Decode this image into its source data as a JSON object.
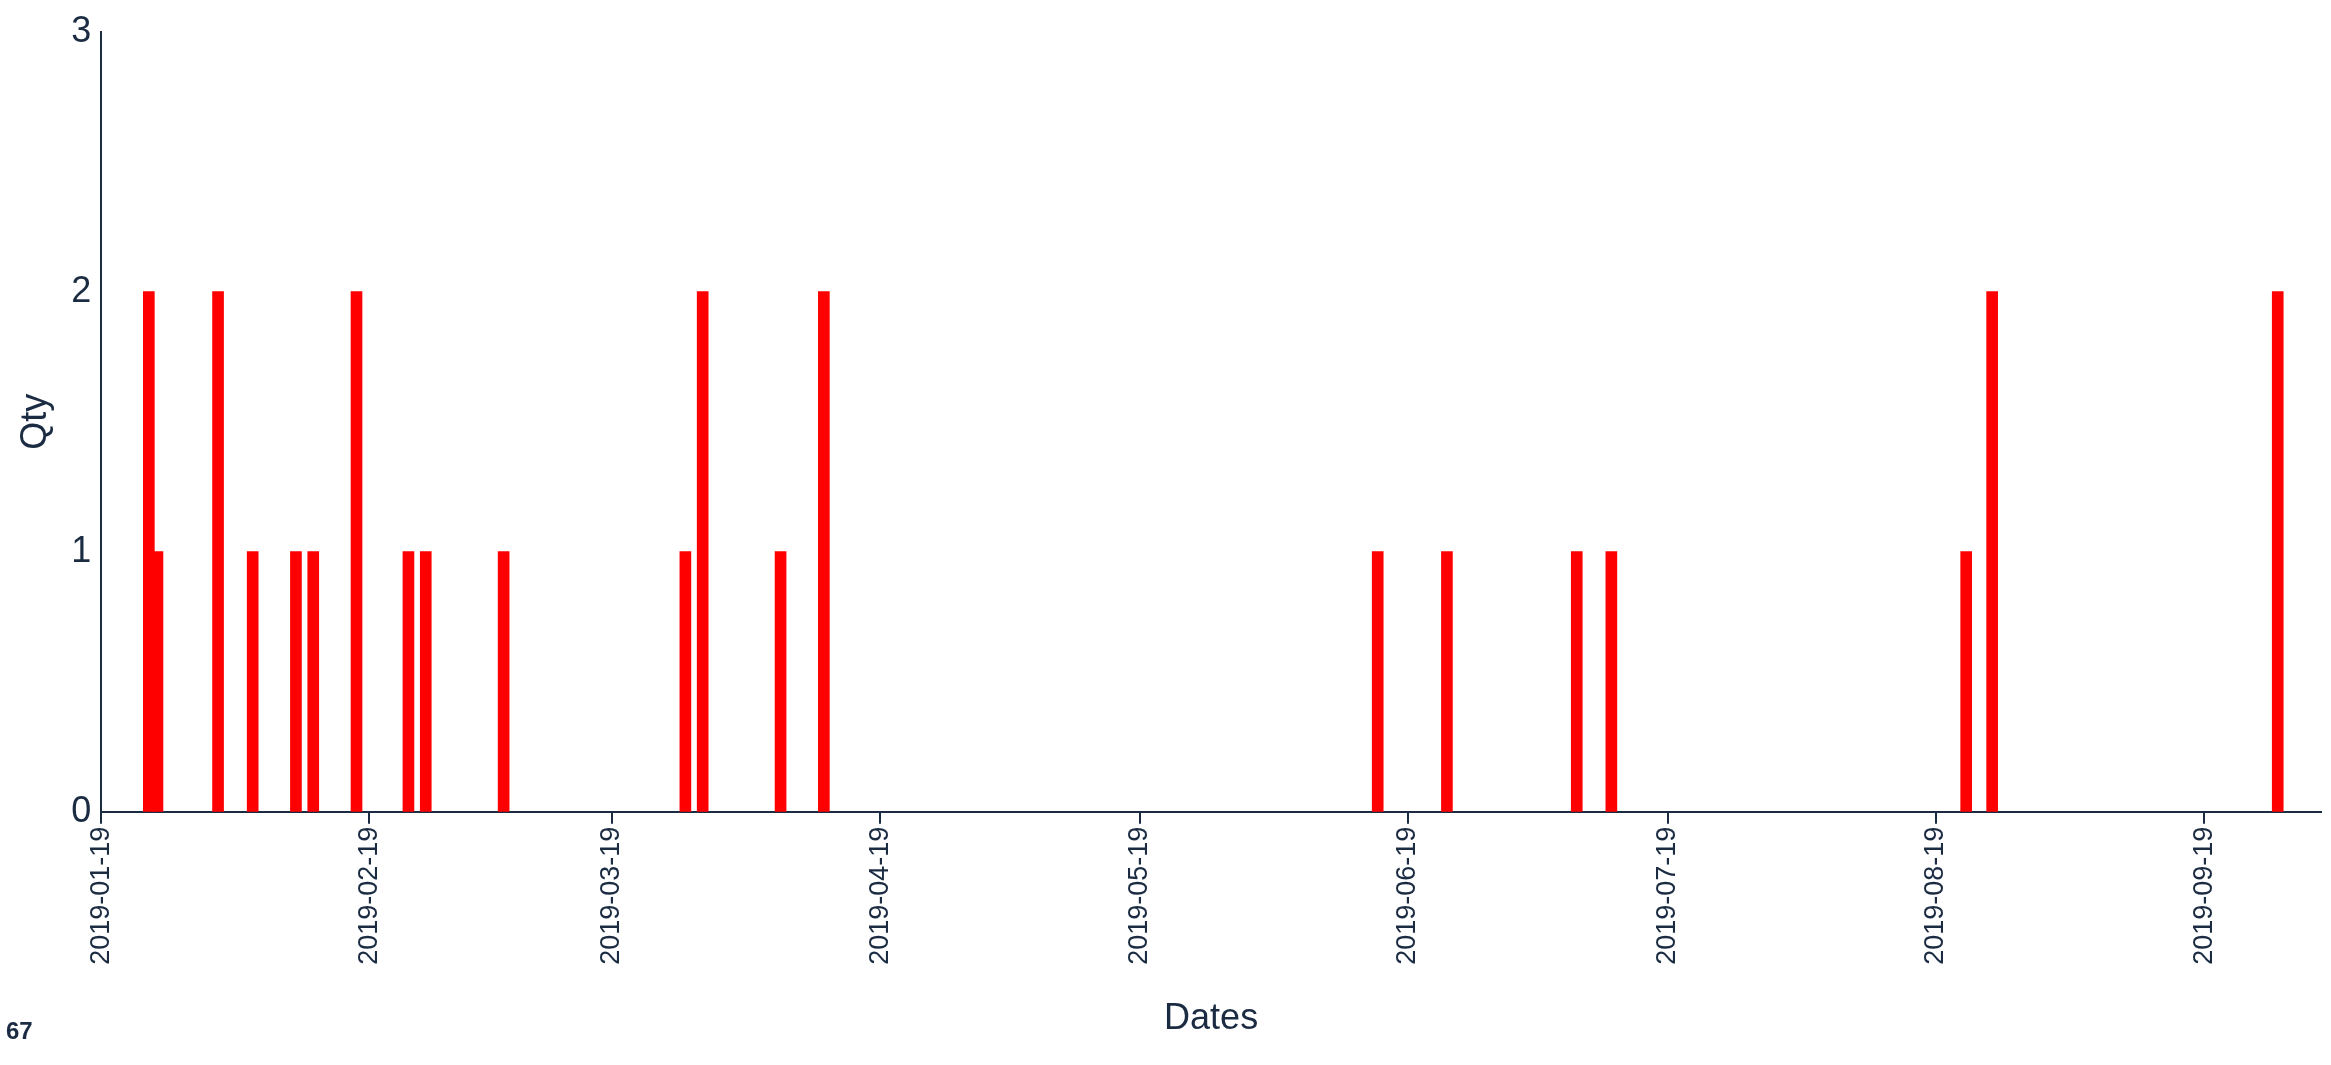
{
  "chart_data": {
    "type": "bar",
    "xlabel": "Dates",
    "ylabel": "Qty",
    "color": "#ff0000",
    "x": [
      "2019-01-24T12:00",
      "2019-01-25T12:00",
      "2019-02-01T12:00",
      "2019-02-05T12:00",
      "2019-02-10T12:00",
      "2019-02-12T12:00",
      "2019-02-17T12:00",
      "2019-02-23T12:00",
      "2019-02-25T12:00",
      "2019-03-06T12:00",
      "2019-03-27T12:00",
      "2019-03-29T12:00",
      "2019-04-07T12:00",
      "2019-04-12T12:00",
      "2019-06-15T12:00",
      "2019-06-23T12:00",
      "2019-07-08T12:00",
      "2019-07-12T12:00",
      "2019-08-22T12:00",
      "2019-08-25T12:00",
      "2019-09-27T12:00"
    ],
    "values": [
      2,
      1,
      2,
      1,
      1,
      1,
      2,
      1,
      1,
      1,
      1,
      2,
      1,
      2,
      1,
      1,
      1,
      1,
      1,
      2,
      2
    ],
    "xlim": [
      "2019-01-19",
      "2019-10-02T12:00"
    ],
    "xticks": [
      "2019-01-19",
      "2019-02-19",
      "2019-03-19",
      "2019-04-19",
      "2019-05-19",
      "2019-06-19",
      "2019-07-19",
      "2019-08-19",
      "2019-09-19"
    ],
    "ylim": [
      0,
      3
    ],
    "yticks": [
      0,
      1,
      2,
      3
    ],
    "grid": false,
    "legend": false,
    "annotations": [
      "67"
    ]
  }
}
